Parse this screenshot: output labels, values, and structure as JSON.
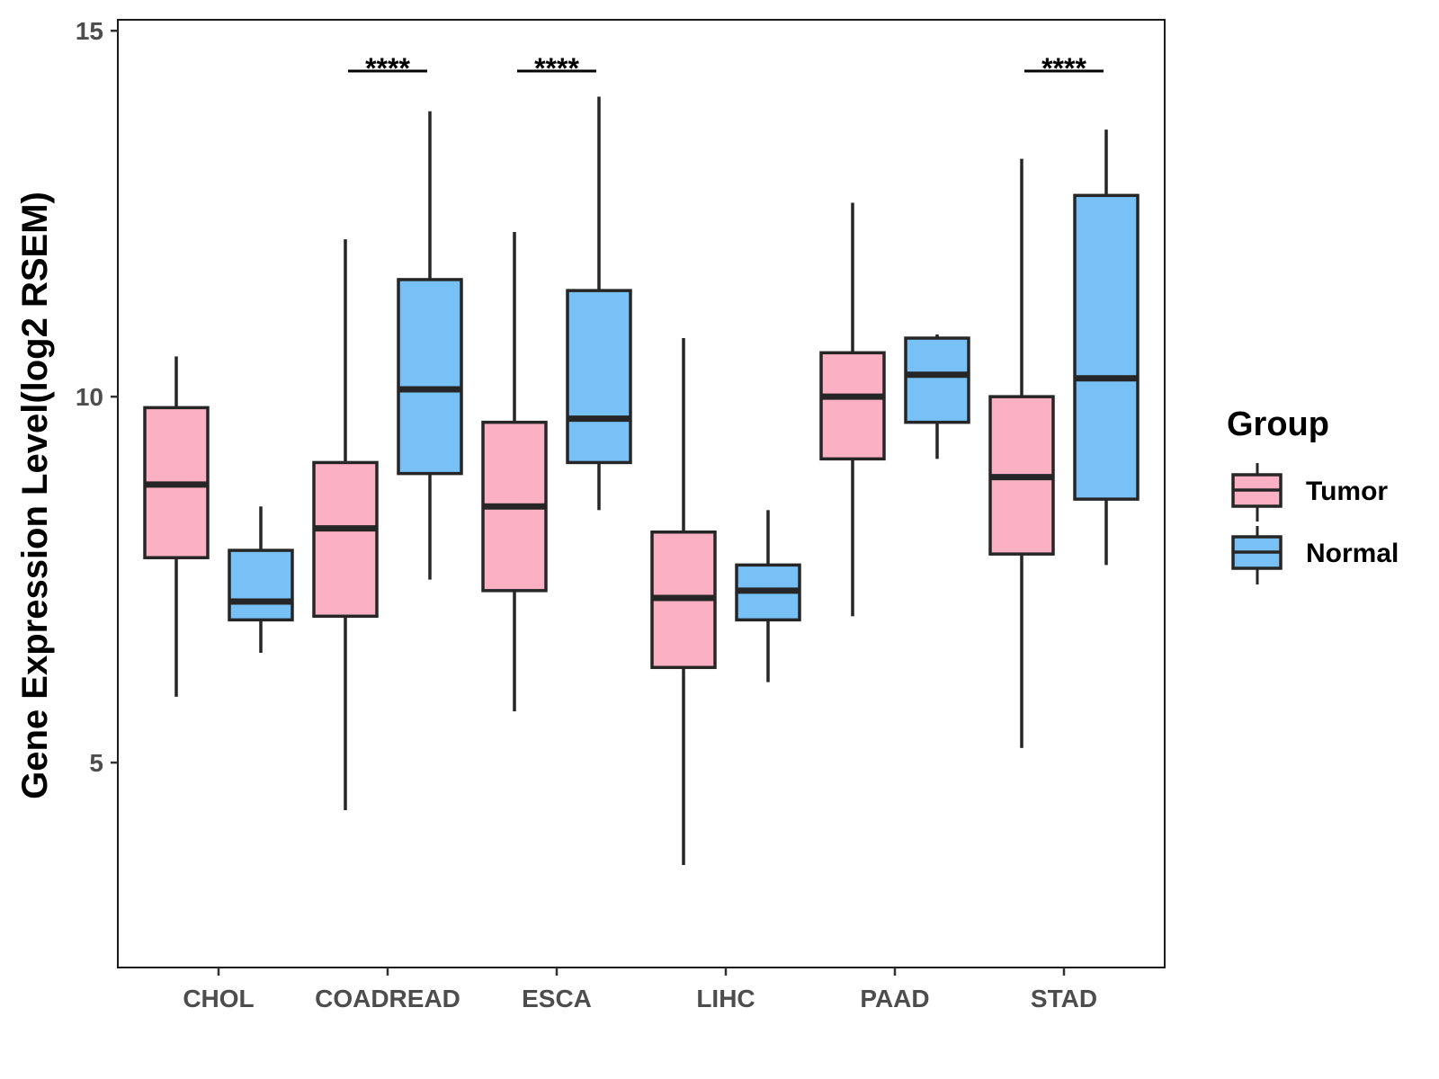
{
  "chart_data": {
    "type": "boxplot",
    "title": "",
    "xlabel": "",
    "ylabel": "Gene Expression Level(log2 RSEM)",
    "ylim": [
      2.2,
      15.15
    ],
    "yticks": [
      5,
      10,
      15
    ],
    "yticklabels": [
      "5",
      "10",
      "15"
    ],
    "categories": [
      "CHOL",
      "COADREAD",
      "ESCA",
      "LIHC",
      "PAAD",
      "STAD"
    ],
    "legend": {
      "title": "Group",
      "position": "right",
      "entries": [
        {
          "name": "Tumor",
          "color": "#fbb1c3"
        },
        {
          "name": "Normal",
          "color": "#77c1f7"
        }
      ]
    },
    "series": [
      {
        "name": "Tumor",
        "color": "#fbb1c3",
        "boxes": [
          {
            "category": "CHOL",
            "whisker_low": 5.9,
            "q1": 7.8,
            "median": 8.8,
            "q3": 9.85,
            "whisker_high": 10.55
          },
          {
            "category": "COADREAD",
            "whisker_low": 4.35,
            "q1": 7.0,
            "median": 8.2,
            "q3": 9.1,
            "whisker_high": 12.15
          },
          {
            "category": "ESCA",
            "whisker_low": 5.7,
            "q1": 7.35,
            "median": 8.5,
            "q3": 9.65,
            "whisker_high": 12.25
          },
          {
            "category": "LIHC",
            "whisker_low": 3.6,
            "q1": 6.3,
            "median": 7.25,
            "q3": 8.15,
            "whisker_high": 10.8
          },
          {
            "category": "PAAD",
            "whisker_low": 7.0,
            "q1": 9.15,
            "median": 10.0,
            "q3": 10.6,
            "whisker_high": 12.65
          },
          {
            "category": "STAD",
            "whisker_low": 5.2,
            "q1": 7.85,
            "median": 8.9,
            "q3": 10.0,
            "whisker_high": 13.25
          }
        ]
      },
      {
        "name": "Normal",
        "color": "#77c1f7",
        "boxes": [
          {
            "category": "CHOL",
            "whisker_low": 6.5,
            "q1": 6.95,
            "median": 7.2,
            "q3": 7.9,
            "whisker_high": 8.5
          },
          {
            "category": "COADREAD",
            "whisker_low": 7.5,
            "q1": 8.95,
            "median": 10.1,
            "q3": 11.6,
            "whisker_high": 13.9
          },
          {
            "category": "ESCA",
            "whisker_low": 8.45,
            "q1": 9.1,
            "median": 9.7,
            "q3": 11.45,
            "whisker_high": 14.1
          },
          {
            "category": "LIHC",
            "whisker_low": 6.1,
            "q1": 6.95,
            "median": 7.35,
            "q3": 7.7,
            "whisker_high": 8.45
          },
          {
            "category": "PAAD",
            "whisker_low": 9.15,
            "q1": 9.65,
            "median": 10.3,
            "q3": 10.8,
            "whisker_high": 10.85
          },
          {
            "category": "STAD",
            "whisker_low": 7.7,
            "q1": 8.6,
            "median": 10.25,
            "q3": 12.75,
            "whisker_high": 13.65
          }
        ]
      }
    ],
    "annotations": [
      {
        "category": "COADREAD",
        "label": "****",
        "y": 14.45
      },
      {
        "category": "ESCA",
        "label": "****",
        "y": 14.45
      },
      {
        "category": "STAD",
        "label": "****",
        "y": 14.45
      }
    ]
  }
}
